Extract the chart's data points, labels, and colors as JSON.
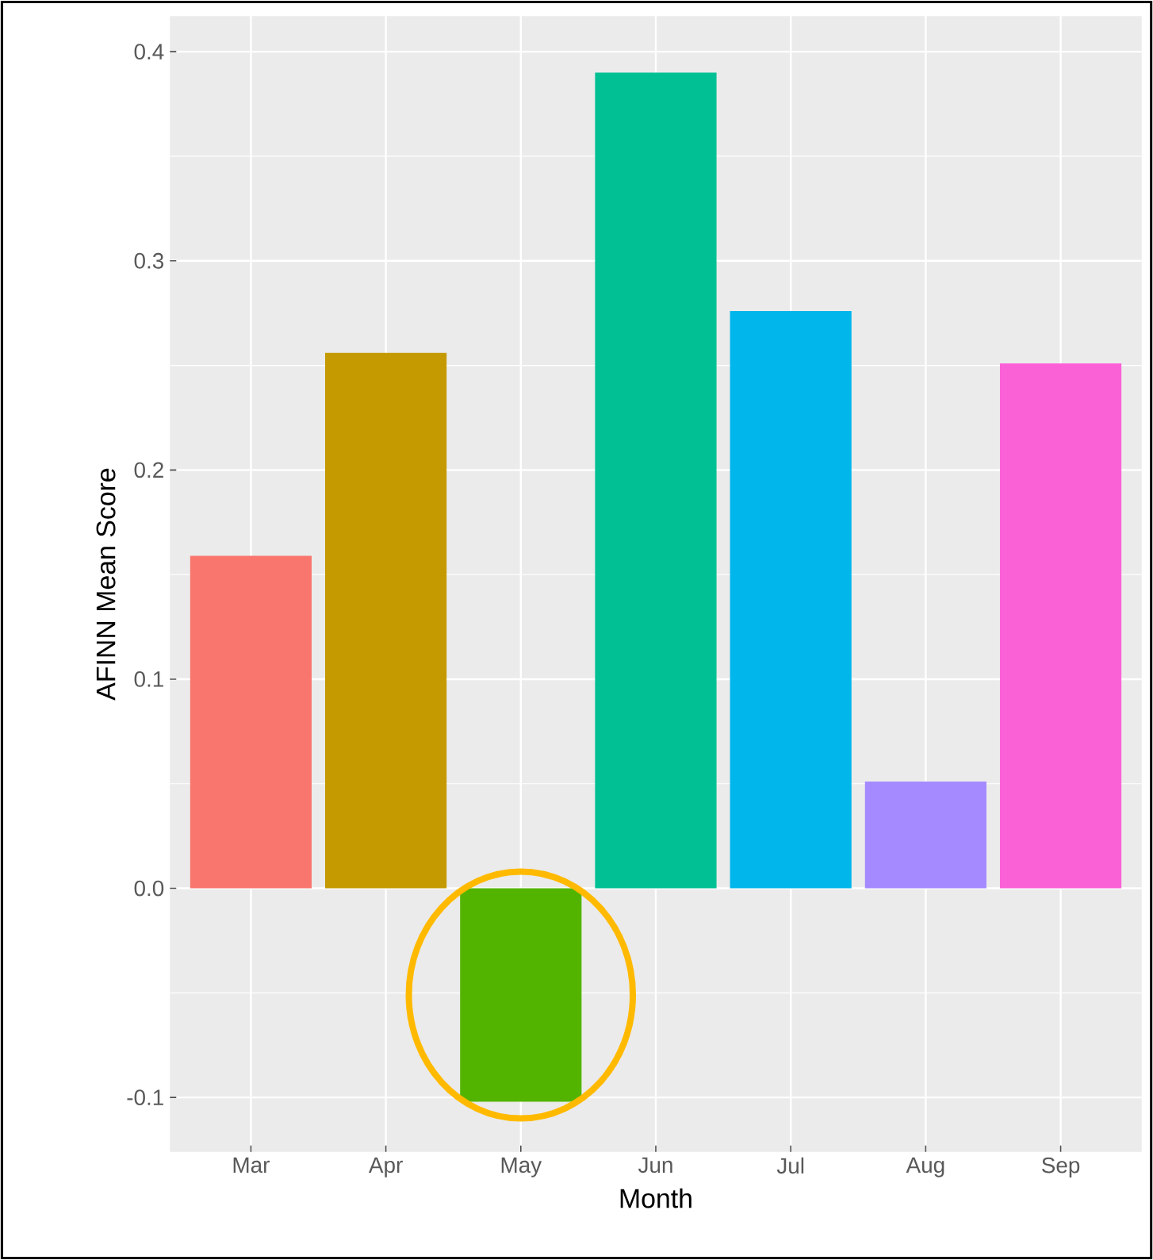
{
  "chart_data": {
    "type": "bar",
    "xlabel": "Month",
    "ylabel": "AFINN Mean Score",
    "categories": [
      "Mar",
      "Apr",
      "May",
      "Jun",
      "Jul",
      "Aug",
      "Sep"
    ],
    "values": [
      0.159,
      0.256,
      -0.102,
      0.39,
      0.276,
      0.051,
      0.251
    ],
    "colors": [
      "#f8766d",
      "#c49a00",
      "#53b400",
      "#00c094",
      "#00b6eb",
      "#a58aff",
      "#fb61d7"
    ],
    "ylim": [
      -0.126,
      0.417
    ],
    "yticks": [
      {
        "value": -0.1,
        "label": "-0.1"
      },
      {
        "value": 0,
        "label": "0.0"
      },
      {
        "value": 0.1,
        "label": "0.1"
      },
      {
        "value": 0.2,
        "label": "0.2"
      },
      {
        "value": 0.3,
        "label": "0.3"
      },
      {
        "value": 0.4,
        "label": "0.4"
      }
    ],
    "grid": true
  }
}
